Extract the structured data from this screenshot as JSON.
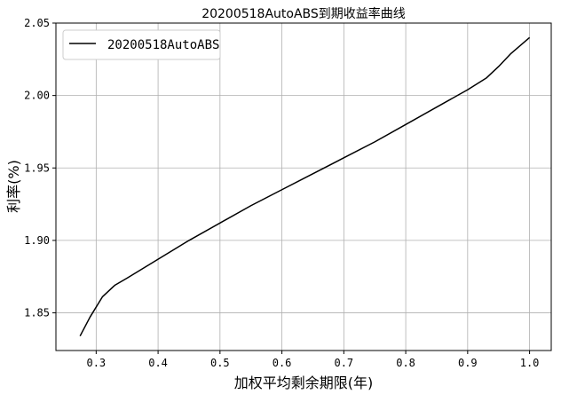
{
  "chart_data": {
    "type": "line",
    "title": "20200518AutoABS到期收益率曲线",
    "xlabel": "加权平均剩余期限(年)",
    "ylabel": "利率(%)",
    "xlim": [
      0.235,
      1.035
    ],
    "ylim": [
      1.824,
      2.05
    ],
    "xticks": [
      "0.3",
      "0.4",
      "0.5",
      "0.6",
      "0.7",
      "0.8",
      "0.9",
      "1.0"
    ],
    "yticks": [
      "1.85",
      "1.90",
      "1.95",
      "2.00",
      "2.05"
    ],
    "grid": true,
    "legend_position": "top-left",
    "series": [
      {
        "name": "20200518AutoABS",
        "color": "#000000",
        "x": [
          0.274,
          0.29,
          0.31,
          0.33,
          0.35,
          0.4,
          0.45,
          0.5,
          0.55,
          0.6,
          0.65,
          0.7,
          0.75,
          0.8,
          0.85,
          0.9,
          0.93,
          0.95,
          0.97,
          1.0
        ],
        "y": [
          1.834,
          1.847,
          1.861,
          1.869,
          1.874,
          1.887,
          1.9,
          1.912,
          1.924,
          1.935,
          1.946,
          1.957,
          1.968,
          1.98,
          1.992,
          2.004,
          2.012,
          2.02,
          2.029,
          2.04
        ]
      }
    ]
  }
}
